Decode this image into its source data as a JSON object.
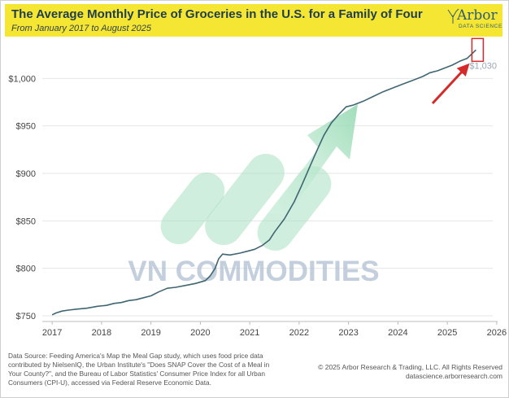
{
  "header": {
    "title": "The Average Monthly Price of Groceries in the U.S. for a Family of Four",
    "subtitle": "From January 2017 to August 2025"
  },
  "logo": {
    "word": "Arbor",
    "sub": "DATA SCIENCE"
  },
  "watermark": "VN COMMODITIES",
  "chart_data": {
    "type": "line",
    "title": "The Average Monthly Price of Groceries in the U.S. for a Family of Four",
    "subtitle": "From January 2017 to August 2025",
    "xlabel": "",
    "ylabel": "",
    "xlim": [
      2016.8,
      2026.15
    ],
    "ylim": [
      744,
      1038
    ],
    "x_ticks": [
      2017,
      2018,
      2019,
      2020,
      2021,
      2022,
      2023,
      2024,
      2025,
      2026
    ],
    "x_tick_labels": [
      "2017",
      "2018",
      "2019",
      "2020",
      "2021",
      "2022",
      "2023",
      "2024",
      "2025",
      "2026"
    ],
    "y_ticks": [
      750,
      800,
      850,
      900,
      950,
      1000
    ],
    "y_tick_labels": [
      "$750",
      "$800",
      "$850",
      "$900",
      "$950",
      "$1,000"
    ],
    "grid": "horizontal",
    "line_color": "#3f6672",
    "series": [
      {
        "name": "Average monthly grocery price",
        "x": [
          2017.0,
          2017.08,
          2017.2,
          2017.33,
          2017.5,
          2017.7,
          2017.92,
          2018.1,
          2018.25,
          2018.4,
          2018.55,
          2018.7,
          2018.85,
          2019.0,
          2019.15,
          2019.33,
          2019.5,
          2019.7,
          2019.9,
          2020.1,
          2020.2,
          2020.3,
          2020.37,
          2020.45,
          2020.6,
          2020.8,
          2020.95,
          2021.1,
          2021.25,
          2021.4,
          2021.5,
          2021.7,
          2021.9,
          2022.05,
          2022.2,
          2022.35,
          2022.5,
          2022.65,
          2022.8,
          2022.95,
          2023.1,
          2023.3,
          2023.5,
          2023.7,
          2023.9,
          2024.1,
          2024.3,
          2024.5,
          2024.65,
          2024.8,
          2024.95,
          2025.1,
          2025.25,
          2025.4,
          2025.5,
          2025.58
        ],
        "values": [
          751,
          753,
          755,
          756,
          757,
          758,
          760,
          761,
          763,
          764,
          766,
          767,
          769,
          771,
          775,
          779,
          780,
          782,
          784,
          787,
          792,
          800,
          810,
          815,
          814,
          816,
          818,
          820,
          824,
          830,
          838,
          852,
          870,
          887,
          905,
          923,
          940,
          953,
          962,
          970,
          972,
          976,
          981,
          986,
          990,
          994,
          998,
          1002,
          1006,
          1008,
          1011,
          1014,
          1018,
          1021,
          1026,
          1030
        ]
      }
    ],
    "annotations": [
      {
        "label": "$1,030",
        "x": 2025.58,
        "y": 1030,
        "style": "red box with red arrow"
      }
    ],
    "legend": "none"
  },
  "footer": {
    "source": "Data Source: Feeding America's Map the Meal Gap study, which uses food price data contributed by NielsenIQ, the Urban Institute's \"Does SNAP Cover the Cost of a Meal in Your County?\", and the Bureau of Labor Statistics' Consumer Price Index for all Urban Consumers (CPI-U), accessed via Federal Reserve Economic Data.",
    "copyright": "© 2025 Arbor Research & Trading, LLC. All Rights Reserved",
    "website": "datascience.arborresearch.com"
  },
  "colors": {
    "header_bg": "#f6e634",
    "line": "#3f6672",
    "annotation": "#d42a2a",
    "watermark_green": "#96d9b4",
    "watermark_text": "#b5c4d4"
  }
}
